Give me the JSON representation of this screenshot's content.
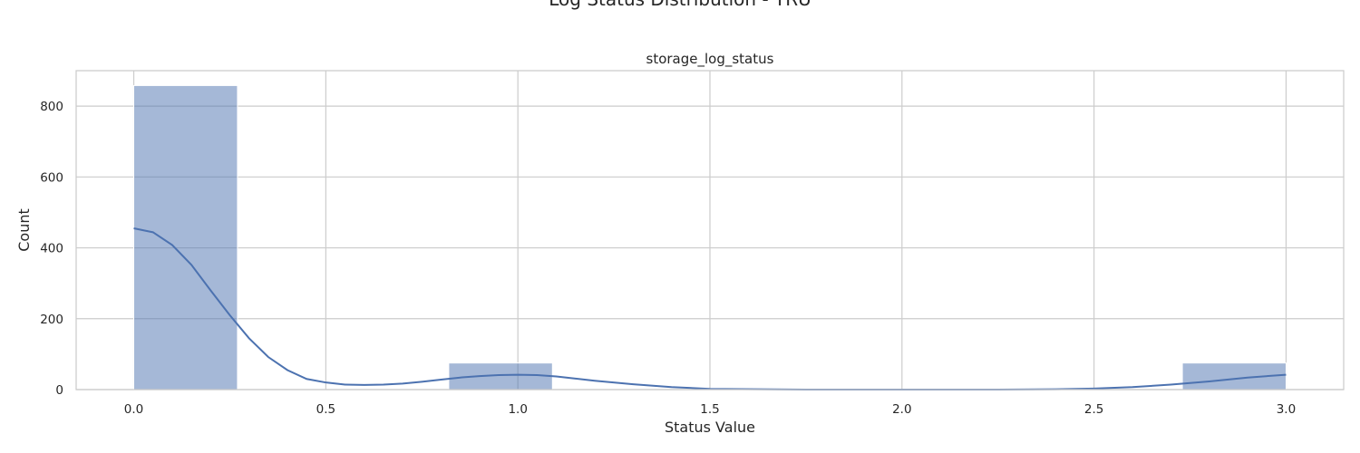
{
  "chart_data": {
    "type": "bar",
    "suptitle": "Log Status Distribution - TRU",
    "title": "storage_log_status",
    "xlabel": "Status Value",
    "ylabel": "Count",
    "xlim": [
      -0.15,
      3.15
    ],
    "ylim": [
      0,
      900
    ],
    "grid": true,
    "xticks": [
      {
        "value": 0.0,
        "label": "0.0"
      },
      {
        "value": 0.5,
        "label": "0.5"
      },
      {
        "value": 1.0,
        "label": "1.0"
      },
      {
        "value": 1.5,
        "label": "1.5"
      },
      {
        "value": 2.0,
        "label": "2.0"
      },
      {
        "value": 2.5,
        "label": "2.5"
      },
      {
        "value": 3.0,
        "label": "3.0"
      }
    ],
    "yticks": [
      {
        "value": 0,
        "label": "0"
      },
      {
        "value": 200,
        "label": "200"
      },
      {
        "value": 400,
        "label": "400"
      },
      {
        "value": 600,
        "label": "600"
      },
      {
        "value": 800,
        "label": "800"
      }
    ],
    "bins": [
      {
        "x0": 0.0,
        "x1": 0.27,
        "count": 858
      },
      {
        "x0": 0.82,
        "x1": 1.09,
        "count": 75
      },
      {
        "x0": 2.73,
        "x1": 3.0,
        "count": 75
      }
    ],
    "kde": {
      "x": [
        0.0,
        0.05,
        0.1,
        0.15,
        0.2,
        0.25,
        0.3,
        0.35,
        0.4,
        0.45,
        0.5,
        0.55,
        0.6,
        0.65,
        0.7,
        0.75,
        0.8,
        0.85,
        0.9,
        0.95,
        1.0,
        1.05,
        1.1,
        1.15,
        1.2,
        1.3,
        1.4,
        1.5,
        1.75,
        2.0,
        2.25,
        2.4,
        2.5,
        2.6,
        2.7,
        2.8,
        2.9,
        3.0
      ],
      "y": [
        455,
        444,
        408,
        352,
        280,
        210,
        145,
        92,
        55,
        30,
        20,
        14,
        13,
        14,
        17,
        22,
        28,
        34,
        38,
        41,
        42,
        41,
        37,
        31,
        25,
        15,
        7,
        2,
        0,
        0,
        0,
        1,
        3,
        7,
        14,
        23,
        34,
        42
      ]
    },
    "colors": {
      "bar": "#4c72b0",
      "bar_opacity": 0.5,
      "kde": "#4c72b0",
      "grid": "#cccccc",
      "spine": "#cccccc"
    }
  }
}
